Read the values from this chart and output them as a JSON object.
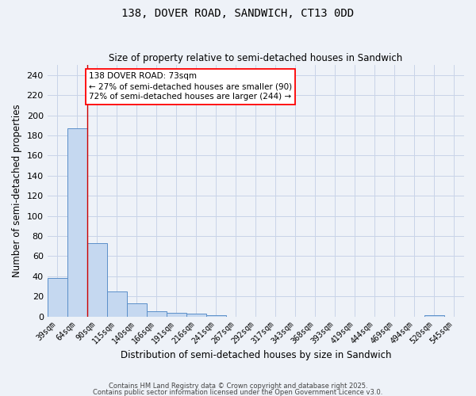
{
  "title1": "138, DOVER ROAD, SANDWICH, CT13 0DD",
  "title2": "Size of property relative to semi-detached houses in Sandwich",
  "xlabel": "Distribution of semi-detached houses by size in Sandwich",
  "ylabel": "Number of semi-detached properties",
  "categories": [
    "39sqm",
    "64sqm",
    "90sqm",
    "115sqm",
    "140sqm",
    "166sqm",
    "191sqm",
    "216sqm",
    "241sqm",
    "267sqm",
    "292sqm",
    "317sqm",
    "343sqm",
    "368sqm",
    "393sqm",
    "419sqm",
    "444sqm",
    "469sqm",
    "494sqm",
    "520sqm",
    "545sqm"
  ],
  "values": [
    38,
    187,
    73,
    25,
    13,
    5,
    4,
    3,
    1,
    0,
    0,
    0,
    0,
    0,
    0,
    0,
    0,
    0,
    0,
    1,
    0
  ],
  "bar_color": "#c5d8f0",
  "bar_edge_color": "#5b8fc9",
  "grid_color": "#c8d4e8",
  "bg_color": "#eef2f8",
  "red_line_x": 1.5,
  "annotation_text": "138 DOVER ROAD: 73sqm\n← 27% of semi-detached houses are smaller (90)\n72% of semi-detached houses are larger (244) →",
  "annotation_box_color": "white",
  "annotation_box_edge": "red",
  "ylim": [
    0,
    250
  ],
  "yticks": [
    0,
    20,
    40,
    60,
    80,
    100,
    120,
    140,
    160,
    180,
    200,
    220,
    240
  ],
  "footnote1": "Contains HM Land Registry data © Crown copyright and database right 2025.",
  "footnote2": "Contains public sector information licensed under the Open Government Licence v3.0."
}
